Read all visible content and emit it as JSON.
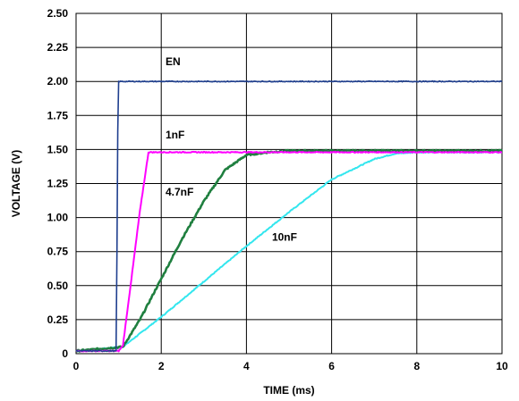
{
  "chart_data": {
    "type": "line",
    "xlabel": "TIME (ms)",
    "ylabel": "VOLTAGE (V)",
    "xlim": [
      0,
      10
    ],
    "ylim": [
      0,
      2.5
    ],
    "xticks": [
      0,
      2,
      4,
      6,
      8,
      10
    ],
    "xtick_labels": [
      "0",
      "2",
      "4",
      "6",
      "8",
      "10"
    ],
    "yticks": [
      0,
      0.25,
      0.5,
      0.75,
      1.0,
      1.25,
      1.5,
      1.75,
      2.0,
      2.25,
      2.5
    ],
    "ytick_labels": [
      "0",
      "0.25",
      "0.50",
      "0.75",
      "1.00",
      "1.25",
      "1.50",
      "1.75",
      "2.00",
      "2.25",
      "2.50"
    ],
    "grid": true,
    "series": [
      {
        "name": "EN",
        "color": "#1f3f8f",
        "x": [
          0,
          0.95,
          0.97,
          1.0,
          1.02,
          2,
          4,
          6,
          8,
          10
        ],
        "y": [
          0.02,
          0.02,
          1.45,
          2.0,
          2.0,
          2.0,
          2.0,
          2.0,
          2.0,
          2.0
        ]
      },
      {
        "name": "1nF",
        "color": "#ff00ff",
        "x": [
          0,
          1.0,
          1.1,
          1.3,
          1.5,
          1.7,
          1.9,
          2.5,
          4,
          6,
          8,
          10
        ],
        "y": [
          0.02,
          0.02,
          0.06,
          0.55,
          1.05,
          1.48,
          1.48,
          1.48,
          1.48,
          1.48,
          1.48,
          1.48
        ]
      },
      {
        "name": "4.7nF",
        "color": "#1f7f3f",
        "x": [
          0,
          1.1,
          1.5,
          2.0,
          2.5,
          3.0,
          3.5,
          4.0,
          4.5,
          5.0,
          6,
          8,
          10
        ],
        "y": [
          0.02,
          0.05,
          0.25,
          0.55,
          0.85,
          1.12,
          1.35,
          1.46,
          1.48,
          1.49,
          1.49,
          1.49,
          1.49
        ]
      },
      {
        "name": "10nF",
        "color": "#33e6ee",
        "x": [
          0,
          1.1,
          2,
          3,
          4,
          5,
          6,
          7,
          7.5,
          8,
          9,
          10
        ],
        "y": [
          0.02,
          0.05,
          0.27,
          0.53,
          0.79,
          1.04,
          1.28,
          1.43,
          1.47,
          1.48,
          1.48,
          1.48
        ]
      }
    ],
    "annotations": [
      {
        "text": "EN",
        "x": 2.1,
        "y": 2.12
      },
      {
        "text": "1nF",
        "x": 2.1,
        "y": 1.58
      },
      {
        "text": "4.7nF",
        "x": 2.1,
        "y": 1.16
      },
      {
        "text": "10nF",
        "x": 4.6,
        "y": 0.83
      }
    ]
  }
}
